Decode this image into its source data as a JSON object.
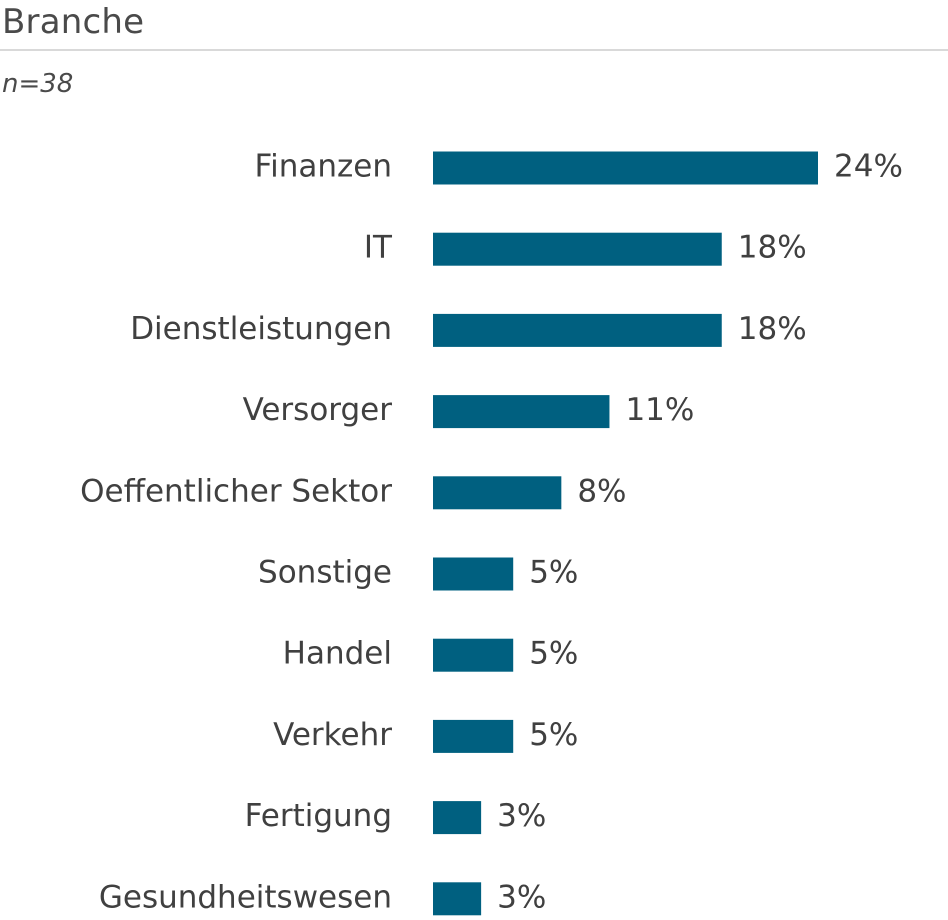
{
  "header": {
    "title": "Branche",
    "subtitle": "n=38"
  },
  "chart_data": {
    "type": "bar",
    "orientation": "horizontal",
    "categories": [
      "Finanzen",
      "IT",
      "Dienstleistungen",
      "Versorger",
      "Oeffentlicher Sektor",
      "Sonstige",
      "Handel",
      "Verkehr",
      "Fertigung",
      "Gesundheitswesen"
    ],
    "values": [
      24,
      18,
      18,
      11,
      8,
      5,
      5,
      5,
      3,
      3
    ],
    "value_labels": [
      "24%",
      "18%",
      "18%",
      "11%",
      "8%",
      "5%",
      "5%",
      "5%",
      "3%",
      "3%"
    ],
    "unit": "%",
    "xlim": [
      0,
      24
    ],
    "grid": false,
    "legend": "none",
    "bar_color": "#006080"
  }
}
